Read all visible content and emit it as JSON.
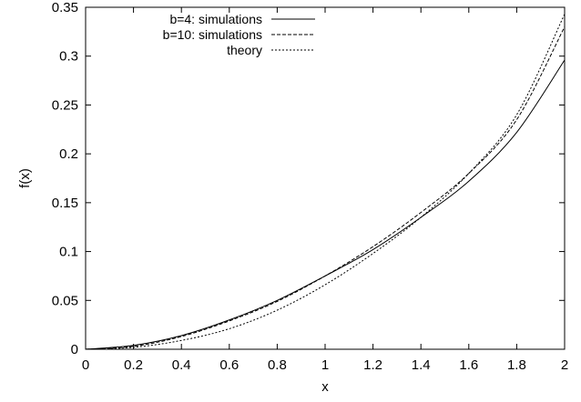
{
  "chart_data": {
    "type": "line",
    "title": "",
    "xlabel": "x",
    "ylabel": "f(x)",
    "xlim": [
      0,
      2
    ],
    "ylim": [
      0,
      0.35
    ],
    "xticks": [
      "0",
      "0.2",
      "0.4",
      "0.6",
      "0.8",
      "1",
      "1.2",
      "1.4",
      "1.6",
      "1.8",
      "2"
    ],
    "yticks": [
      "0",
      "0.05",
      "0.1",
      "0.15",
      "0.2",
      "0.25",
      "0.3",
      "0.35"
    ],
    "grid": false,
    "legend_position": "top-left",
    "series": [
      {
        "name": "b=4: simulations",
        "style": "solid",
        "x": [
          0,
          0.2,
          0.4,
          0.6,
          0.8,
          1.0,
          1.2,
          1.4,
          1.6,
          1.8,
          2.0
        ],
        "y": [
          0,
          0.004,
          0.014,
          0.03,
          0.05,
          0.075,
          0.102,
          0.135,
          0.172,
          0.222,
          0.296
        ]
      },
      {
        "name": "b=10: simulations",
        "style": "dashed",
        "x": [
          0,
          0.2,
          0.4,
          0.6,
          0.8,
          1.0,
          1.2,
          1.4,
          1.6,
          1.8,
          2.0
        ],
        "y": [
          0,
          0.003,
          0.013,
          0.029,
          0.049,
          0.075,
          0.105,
          0.14,
          0.18,
          0.235,
          0.33
        ]
      },
      {
        "name": "theory",
        "style": "dotted",
        "x": [
          0,
          0.2,
          0.4,
          0.6,
          0.8,
          1.0,
          1.2,
          1.4,
          1.6,
          1.8,
          2.0
        ],
        "y": [
          0,
          0.002,
          0.009,
          0.021,
          0.04,
          0.066,
          0.098,
          0.135,
          0.18,
          0.24,
          0.343
        ]
      }
    ]
  }
}
